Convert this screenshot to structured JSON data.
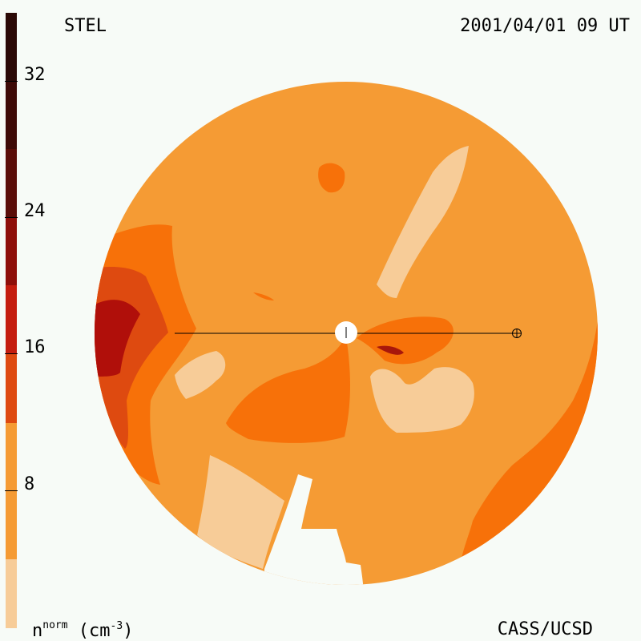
{
  "header": {
    "station": "STEL",
    "datetime": "2001/04/01 09 UT"
  },
  "footer": {
    "unit_base": "n",
    "unit_sup": "norm",
    "unit_suffix_open": " (cm",
    "unit_exp": "-3",
    "unit_suffix_close": ")",
    "credit": "CASS/UCSD"
  },
  "colorbar": {
    "ticks": [
      "32",
      "24",
      "16",
      "8"
    ],
    "bands": [
      "#2b0906",
      "#5a0d08",
      "#8e0f0a",
      "#c41d0f",
      "#de4a10",
      "#f77109",
      "#f59b34",
      "#f7cc98"
    ]
  },
  "map": {
    "sun_marker": "sun-icon",
    "earth_marker": "earth-icon"
  }
}
